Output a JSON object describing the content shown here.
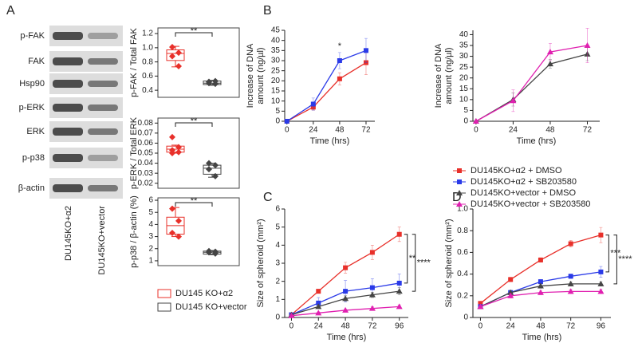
{
  "panel_labels": [
    "A",
    "B",
    "C",
    "D"
  ],
  "blot": {
    "bands": [
      "p-FAK",
      "FAK",
      "Hsp90",
      "p-ERK",
      "ERK",
      "p-p38",
      "β-actin"
    ],
    "lanes": [
      "DU145KO+α2",
      "DU145KO+vector"
    ]
  },
  "chart_data": [
    {
      "type": "box",
      "ylabel": "p-FAK / Total FAK",
      "ylim": [
        0.3,
        1.28
      ],
      "yticks": [
        0.4,
        0.6,
        0.8,
        {
          "value": 1,
          "label": "1.0"
        },
        1.2
      ],
      "annotation": "**",
      "groups": [
        {
          "name": "DU145 KO+α2",
          "color": "#e8302a",
          "min": 0.73,
          "q1": 0.82,
          "median": 0.92,
          "q3": 0.97,
          "max": 1.02,
          "points": [
            1.01,
            0.93,
            0.88,
            0.74
          ]
        },
        {
          "name": "DU145 KO+vector",
          "color": "#444444",
          "min": 0.47,
          "q1": 0.48,
          "median": 0.5,
          "q3": 0.53,
          "max": 0.54,
          "points": [
            0.52,
            0.49,
            0.5,
            0.53
          ]
        }
      ]
    },
    {
      "type": "box",
      "ylabel": "p-ERK / Total ERK",
      "ylim": [
        0.015,
        0.085
      ],
      "yticks": [
        0.02,
        0.03,
        0.04,
        0.05,
        0.06,
        0.07,
        0.08
      ],
      "annotation": "**",
      "groups": [
        {
          "color": "#e8302a",
          "min": 0.05,
          "q1": 0.051,
          "median": 0.054,
          "q3": 0.057,
          "max": 0.058,
          "points": [
            0.066,
            0.056,
            0.053,
            0.051,
            0.05
          ]
        },
        {
          "color": "#444444",
          "min": 0.026,
          "q1": 0.029,
          "median": 0.035,
          "q3": 0.038,
          "max": 0.04,
          "points": [
            0.04,
            0.038,
            0.034,
            0.027
          ]
        }
      ]
    },
    {
      "type": "box",
      "ylabel": "p-p38 / β-actin (%)",
      "ylim": [
        0.6,
        6.2
      ],
      "yticks": [
        1,
        2,
        3,
        4,
        5,
        6
      ],
      "annotation": "**",
      "groups": [
        {
          "color": "#e8302a",
          "min": 3.0,
          "q1": 3.2,
          "median": 3.9,
          "q3": 4.6,
          "max": 5.4,
          "points": [
            5.3,
            4.3,
            3.3,
            3.0
          ]
        },
        {
          "color": "#444444",
          "min": 1.5,
          "q1": 1.55,
          "median": 1.7,
          "q3": 1.8,
          "max": 1.85,
          "points": [
            1.8,
            1.6,
            1.7,
            1.75
          ]
        }
      ]
    },
    {
      "type": "line",
      "xlabel": "Time (hrs)",
      "ylabel": [
        "Increase of DNA",
        "amount (ng/µl)"
      ],
      "x": [
        0,
        24,
        48,
        72
      ],
      "xlim": [
        -2,
        80
      ],
      "xticks": [
        0,
        24,
        48,
        72
      ],
      "ylim": [
        0,
        45
      ],
      "yticks": [
        0,
        5,
        10,
        15,
        20,
        25,
        30,
        35,
        40,
        45
      ],
      "annotations": [
        "*"
      ],
      "series": [
        {
          "color": "#e8302a",
          "marker": "square",
          "values": [
            0,
            7,
            21,
            29
          ],
          "errors": [
            0,
            1.5,
            3,
            6
          ]
        },
        {
          "color": "#2a3ae8",
          "marker": "square",
          "values": [
            0,
            8.5,
            30,
            35
          ],
          "errors": [
            0,
            3,
            4,
            6
          ]
        }
      ]
    },
    {
      "type": "line",
      "xlabel": "Time (hrs)",
      "ylabel": [
        "Increase of DNA",
        "amount (ng/µl)"
      ],
      "x": [
        0,
        24,
        48,
        72
      ],
      "xlim": [
        -2,
        80
      ],
      "xticks": [
        0,
        24,
        48,
        72
      ],
      "ylim": [
        0,
        42
      ],
      "yticks": [
        0,
        5,
        10,
        15,
        20,
        25,
        30,
        35,
        40
      ],
      "annotations": [],
      "series": [
        {
          "color": "#444444",
          "marker": "triangle",
          "values": [
            0,
            10,
            26.5,
            31
          ],
          "errors": [
            0,
            3,
            2,
            3
          ]
        },
        {
          "color": "#e020b0",
          "marker": "triangle",
          "values": [
            0,
            9.5,
            32,
            35
          ],
          "errors": [
            0,
            5,
            4,
            8
          ]
        }
      ]
    },
    {
      "type": "line",
      "xlabel": "Time (hrs)",
      "ylabel": [
        "Size of spheroid (mm²)"
      ],
      "x": [
        0,
        24,
        48,
        72,
        96
      ],
      "xlim": [
        -6,
        104
      ],
      "xticks": [
        0,
        24,
        48,
        72,
        96
      ],
      "ylim": [
        0,
        6
      ],
      "yticks": [
        0,
        1,
        2,
        3,
        4,
        5,
        6
      ],
      "annotations": [
        "**",
        "****"
      ],
      "series": [
        {
          "name": "DU145KO+α2 + DMSO",
          "color": "#e8302a",
          "marker": "square",
          "values": [
            0.15,
            1.45,
            2.75,
            3.6,
            4.6
          ],
          "errors": [
            0.1,
            0.1,
            0.3,
            0.4,
            0.4
          ]
        },
        {
          "name": "DU145KO+α2 + SB203580",
          "color": "#2a3ae8",
          "marker": "square",
          "values": [
            0.15,
            0.8,
            1.45,
            1.65,
            1.9
          ],
          "errors": [
            0.1,
            0.3,
            0.6,
            0.5,
            0.5
          ]
        },
        {
          "name": "DU145KO+vector + DMSO",
          "color": "#444444",
          "marker": "triangle",
          "values": [
            0.15,
            0.6,
            1.05,
            1.25,
            1.45
          ],
          "errors": [
            0.05,
            0.1,
            0.15,
            0.15,
            0.2
          ]
        },
        {
          "name": "DU145KO+vector + SB203580",
          "color": "#e020b0",
          "marker": "triangle",
          "values": [
            0.1,
            0.25,
            0.4,
            0.5,
            0.6
          ],
          "errors": [
            0.05,
            0.05,
            0.05,
            0.1,
            0.1
          ]
        }
      ]
    },
    {
      "type": "line",
      "xlabel": "Time (hrs)",
      "ylabel": [
        "Size of spheroid (mm²)"
      ],
      "x": [
        0,
        24,
        48,
        72,
        96
      ],
      "xlim": [
        -6,
        104
      ],
      "xticks": [
        0,
        24,
        48,
        72,
        96
      ],
      "ylim": [
        0,
        1.0
      ],
      "yticks": [
        0,
        0.2,
        0.4,
        0.6,
        0.8,
        {
          "value": 1,
          "label": "1.0"
        }
      ],
      "annotations": [
        "***",
        "****"
      ],
      "series": [
        {
          "color": "#e8302a",
          "marker": "square",
          "values": [
            0.13,
            0.35,
            0.53,
            0.68,
            0.76
          ],
          "errors": [
            0.01,
            0.02,
            0.02,
            0.03,
            0.07
          ]
        },
        {
          "color": "#2a3ae8",
          "marker": "square",
          "values": [
            0.1,
            0.23,
            0.33,
            0.38,
            0.42
          ],
          "errors": [
            0.02,
            0.02,
            0.02,
            0.02,
            0.05
          ]
        },
        {
          "color": "#444444",
          "marker": "triangle",
          "values": [
            0.1,
            0.23,
            0.29,
            0.31,
            0.31
          ],
          "errors": [
            0.01,
            0.02,
            0.02,
            0.02,
            0.02
          ]
        },
        {
          "color": "#e020b0",
          "marker": "triangle",
          "values": [
            0.1,
            0.2,
            0.23,
            0.24,
            0.24
          ],
          "errors": [
            0.01,
            0.02,
            0.02,
            0.02,
            0.02
          ]
        }
      ]
    }
  ]
}
